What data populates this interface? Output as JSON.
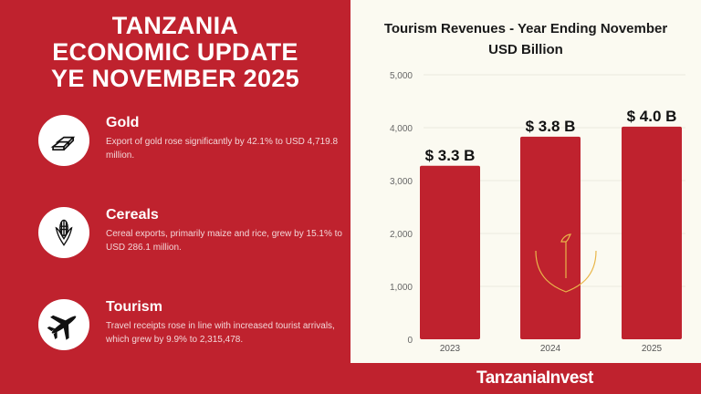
{
  "header": {
    "title_lines": [
      "TANZANIA",
      "ECONOMIC UPDATE",
      "YE NOVEMBER 2025"
    ]
  },
  "items": [
    {
      "icon": "gold-bars-icon",
      "title": "Gold",
      "text": "Export of gold rose significantly by 42.1% to USD 4,719.8 million."
    },
    {
      "icon": "corn-icon",
      "title": "Cereals",
      "text": "Cereal exports, primarily maize and rice, grew by 15.1% to USD 286.1 million."
    },
    {
      "icon": "airplane-icon",
      "title": "Tourism",
      "text": "Travel receipts rose in line with increased tourist arrivals, which grew by 9.9% to 2,315,478."
    }
  ],
  "footer": {
    "logo": "TanzaniaInvest"
  },
  "chart_data": {
    "type": "bar",
    "title": "Tourism Revenues - Year Ending November",
    "subtitle": "USD Billion",
    "categories": [
      "2023",
      "2024",
      "2025"
    ],
    "values": [
      3280,
      3830,
      4020
    ],
    "data_labels": [
      "$ 3.3 B",
      "$ 3.8 B",
      "$ 4.0 B"
    ],
    "yticks": [
      "0",
      "1,000",
      "2,000",
      "3,000",
      "4,000",
      "5,000"
    ],
    "ylim": [
      0,
      5000
    ],
    "grid": true,
    "bar_color": "#bf222e"
  }
}
